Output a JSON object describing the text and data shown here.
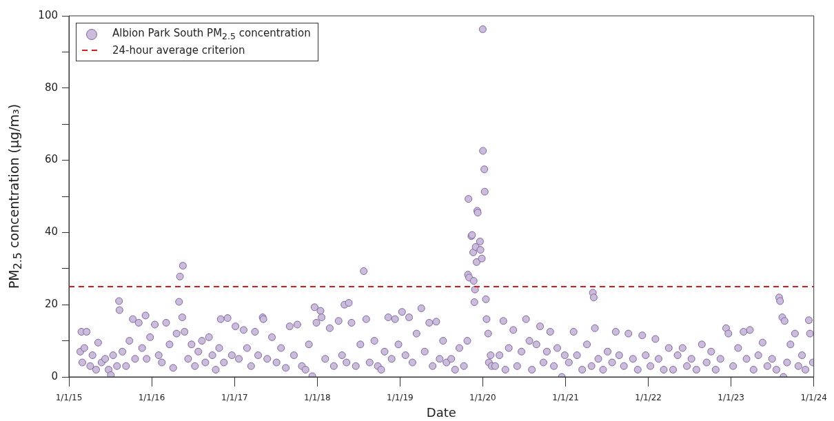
{
  "chart_data": {
    "type": "scatter",
    "xlabel": "Date",
    "ylabel": "PM$_{2.5}$ concentration (µg/m₃)",
    "legend": "top left",
    "grid": false,
    "marker": "circle",
    "xlim": [
      "2015-01-01",
      "2024-01-01"
    ],
    "xticks": [
      {
        "value": "2015-01-01",
        "label": "1/1/15"
      },
      {
        "value": "2016-01-01",
        "label": "1/1/16"
      },
      {
        "value": "2017-01-01",
        "label": "1/1/17"
      },
      {
        "value": "2018-01-01",
        "label": "1/1/18"
      },
      {
        "value": "2019-01-01",
        "label": "1/1/19"
      },
      {
        "value": "2020-01-01",
        "label": "1/1/20"
      },
      {
        "value": "2021-01-01",
        "label": "1/1/21"
      },
      {
        "value": "2022-01-01",
        "label": "1/1/22"
      },
      {
        "value": "2023-01-01",
        "label": "1/1/23"
      },
      {
        "value": "2024-01-01",
        "label": "1/1/24"
      }
    ],
    "ylim": [
      0,
      100
    ],
    "yticks": [
      0,
      {
        "value": 10,
        "label": null
      },
      20,
      {
        "value": 30,
        "label": null
      },
      40,
      {
        "value": 50,
        "label": null
      },
      60,
      {
        "value": 70,
        "label": null
      },
      80,
      {
        "value": 90,
        "label": null
      },
      100
    ],
    "ref_lines": [
      {
        "axis": "y",
        "value": 25,
        "label": "24-hour average criterion",
        "color": "#d7191c",
        "line_style": "dashed"
      }
    ],
    "series": [
      {
        "name": "Albion Park South PM$_{2.5}$ concentration",
        "color": "#8066a6",
        "x": [
          "2015-02-20",
          "2015-02-25",
          "2015-03-01",
          "2015-03-10",
          "2015-03-20",
          "2015-04-05",
          "2015-04-15",
          "2015-05-01",
          "2015-05-10",
          "2015-05-25",
          "2015-06-10",
          "2015-06-25",
          "2015-07-05",
          "2015-07-15",
          "2015-08-01",
          "2015-08-10",
          "2015-08-12",
          "2015-08-25",
          "2015-09-10",
          "2015-09-25",
          "2015-10-10",
          "2015-10-20",
          "2015-11-05",
          "2015-11-20",
          "2015-12-05",
          "2015-12-10",
          "2015-12-25",
          "2016-01-15",
          "2016-02-01",
          "2016-02-15",
          "2016-03-05",
          "2016-03-20",
          "2016-04-05",
          "2016-04-20",
          "2016-05-01",
          "2016-05-05",
          "2016-05-15",
          "2016-05-18",
          "2016-05-25",
          "2016-06-10",
          "2016-06-25",
          "2016-07-10",
          "2016-07-25",
          "2016-08-10",
          "2016-08-25",
          "2016-09-10",
          "2016-09-25",
          "2016-10-10",
          "2016-10-25",
          "2016-11-01",
          "2016-11-15",
          "2016-12-01",
          "2016-12-20",
          "2017-01-05",
          "2017-01-20",
          "2017-02-10",
          "2017-02-25",
          "2017-03-15",
          "2017-04-01",
          "2017-04-15",
          "2017-05-05",
          "2017-05-08",
          "2017-05-25",
          "2017-06-15",
          "2017-07-05",
          "2017-07-25",
          "2017-08-15",
          "2017-09-01",
          "2017-09-20",
          "2017-10-05",
          "2017-10-25",
          "2017-11-10",
          "2017-11-25",
          "2017-12-10",
          "2017-12-20",
          "2017-12-28",
          "2018-01-15",
          "2018-01-20",
          "2018-02-05",
          "2018-02-25",
          "2018-03-15",
          "2018-04-05",
          "2018-04-20",
          "2018-05-01",
          "2018-05-10",
          "2018-05-20",
          "2018-06-01",
          "2018-06-20",
          "2018-07-10",
          "2018-07-25",
          "2018-08-05",
          "2018-08-20",
          "2018-09-10",
          "2018-09-25",
          "2018-10-10",
          "2018-10-25",
          "2018-11-10",
          "2018-11-25",
          "2018-12-10",
          "2018-12-25",
          "2019-01-10",
          "2019-01-25",
          "2019-02-10",
          "2019-02-25",
          "2019-03-15",
          "2019-04-05",
          "2019-04-20",
          "2019-05-10",
          "2019-05-25",
          "2019-06-10",
          "2019-06-25",
          "2019-07-10",
          "2019-07-25",
          "2019-08-15",
          "2019-09-01",
          "2019-09-20",
          "2019-10-10",
          "2019-10-25",
          "2019-10-28",
          "2019-10-30",
          "2019-11-02",
          "2019-11-12",
          "2019-11-15",
          "2019-11-20",
          "2019-11-22",
          "2019-11-25",
          "2019-11-28",
          "2019-12-01",
          "2019-12-05",
          "2019-12-08",
          "2019-12-10",
          "2019-12-20",
          "2019-12-22",
          "2019-12-28",
          "2020-01-01",
          "2020-01-02",
          "2020-01-08",
          "2020-01-10",
          "2020-01-15",
          "2020-01-18",
          "2020-01-25",
          "2020-01-28",
          "2020-02-05",
          "2020-02-10",
          "2020-02-25",
          "2020-03-15",
          "2020-04-01",
          "2020-04-10",
          "2020-04-25",
          "2020-05-15",
          "2020-06-01",
          "2020-06-20",
          "2020-07-10",
          "2020-07-25",
          "2020-08-05",
          "2020-08-25",
          "2020-09-10",
          "2020-09-25",
          "2020-10-10",
          "2020-10-25",
          "2020-11-10",
          "2020-11-25",
          "2020-12-15",
          "2020-12-28",
          "2021-01-15",
          "2021-02-05",
          "2021-02-20",
          "2021-03-15",
          "2021-04-05",
          "2021-04-25",
          "2021-05-01",
          "2021-05-05",
          "2021-05-10",
          "2021-05-25",
          "2021-06-15",
          "2021-07-05",
          "2021-07-25",
          "2021-08-10",
          "2021-08-25",
          "2021-09-15",
          "2021-10-05",
          "2021-10-25",
          "2021-11-15",
          "2021-12-05",
          "2021-12-20",
          "2022-01-10",
          "2022-02-01",
          "2022-02-15",
          "2022-03-10",
          "2022-04-01",
          "2022-04-20",
          "2022-05-10",
          "2022-06-01",
          "2022-06-20",
          "2022-07-10",
          "2022-08-01",
          "2022-08-25",
          "2022-09-15",
          "2022-10-05",
          "2022-10-25",
          "2022-11-15",
          "2022-12-10",
          "2022-12-20",
          "2023-01-10",
          "2023-02-01",
          "2023-02-25",
          "2023-03-10",
          "2023-03-25",
          "2023-04-10",
          "2023-05-01",
          "2023-05-20",
          "2023-06-10",
          "2023-07-01",
          "2023-07-20",
          "2023-08-01",
          "2023-08-05",
          "2023-08-15",
          "2023-08-20",
          "2023-08-25",
          "2023-09-05",
          "2023-09-20",
          "2023-10-10",
          "2023-10-25",
          "2023-11-10",
          "2023-11-25",
          "2023-12-10",
          "2023-12-15",
          "2023-12-28"
        ],
        "values": [
          7,
          12.5,
          4,
          8,
          12.5,
          3,
          6,
          2,
          9.5,
          4,
          5,
          2,
          0.5,
          6,
          3,
          21,
          18.5,
          7,
          3,
          10,
          16,
          5,
          15,
          8,
          17,
          5,
          11,
          14.5,
          6,
          4,
          15,
          9,
          2.5,
          12,
          20.8,
          27.8,
          16.5,
          30.8,
          12.5,
          5,
          9,
          3,
          7,
          10,
          4,
          11,
          6,
          2,
          8,
          16,
          4,
          16.3,
          6,
          14,
          5,
          13,
          8,
          3,
          12.5,
          6,
          16.5,
          16,
          5,
          11,
          4,
          8,
          2.5,
          14,
          6,
          14.5,
          3,
          2,
          9,
          0.2,
          19.3,
          15,
          18.3,
          16.5,
          5,
          13.5,
          3,
          15.5,
          6,
          20,
          4,
          20.5,
          15,
          3,
          9,
          29.3,
          16,
          4,
          10,
          3,
          2,
          7,
          16.5,
          5,
          16,
          9,
          18,
          6,
          16.5,
          4,
          12,
          19,
          7,
          15,
          3,
          15.3,
          5,
          10,
          4,
          5,
          2,
          8,
          3,
          10,
          28.3,
          49.3,
          27.5,
          39,
          39.3,
          34.5,
          26.6,
          20.7,
          24.2,
          36,
          31.8,
          46,
          45.5,
          37.5,
          35.2,
          32.8,
          96.3,
          62.6,
          57.5,
          51.3,
          21.5,
          16,
          12,
          4,
          6,
          3,
          3,
          6,
          15.5,
          2,
          8,
          13,
          3,
          7,
          16,
          10,
          2,
          9,
          14,
          4,
          7,
          12.5,
          3,
          8,
          0,
          6,
          4,
          12.5,
          6,
          2,
          9,
          3,
          23.3,
          22,
          13.5,
          5,
          2,
          7,
          4,
          12.5,
          6,
          3,
          12,
          5,
          2,
          11.5,
          6,
          3,
          10.5,
          5,
          2,
          8,
          2,
          6,
          8,
          3,
          5,
          2,
          9,
          4,
          7,
          2,
          5,
          13.5,
          12,
          3,
          8,
          12.5,
          5,
          13,
          2,
          6,
          9.5,
          3,
          5,
          2,
          22,
          21,
          16.5,
          0,
          15.5,
          4,
          9,
          12,
          3,
          6,
          2,
          15.7,
          12,
          4
        ]
      }
    ]
  }
}
